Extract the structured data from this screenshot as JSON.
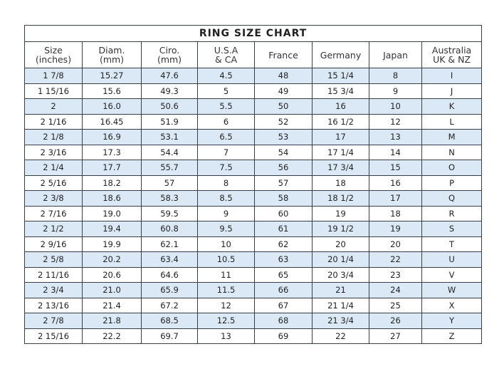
{
  "title": "RING SIZE CHART",
  "colors": {
    "stripe": "#dbe9f7",
    "border": "#3a3f45"
  },
  "headers": [
    [
      "Size",
      "(inches)"
    ],
    [
      "Diam.",
      "(mm)"
    ],
    [
      "Ciro.",
      "(mm)"
    ],
    [
      "U.S.A",
      "& CA"
    ],
    [
      "France",
      ""
    ],
    [
      "Germany",
      ""
    ],
    [
      "Japan",
      ""
    ],
    [
      "Australia",
      "UK & NZ"
    ]
  ],
  "rows": [
    [
      "1 7/8",
      "15.27",
      "47.6",
      "4.5",
      "48",
      "15 1/4",
      "8",
      "I"
    ],
    [
      "1 15/16",
      "15.6",
      "49.3",
      "5",
      "49",
      "15 3/4",
      "9",
      "J"
    ],
    [
      "2",
      "16.0",
      "50.6",
      "5.5",
      "50",
      "16",
      "10",
      "K"
    ],
    [
      "2 1/16",
      "16.45",
      "51.9",
      "6",
      "52",
      "16 1/2",
      "12",
      "L"
    ],
    [
      "2 1/8",
      "16.9",
      "53.1",
      "6.5",
      "53",
      "17",
      "13",
      "M"
    ],
    [
      "2 3/16",
      "17.3",
      "54.4",
      "7",
      "54",
      "17 1/4",
      "14",
      "N"
    ],
    [
      "2 1/4",
      "17.7",
      "55.7",
      "7.5",
      "56",
      "17 3/4",
      "15",
      "O"
    ],
    [
      "2 5/16",
      "18.2",
      "57",
      "8",
      "57",
      "18",
      "16",
      "P"
    ],
    [
      "2 3/8",
      "18.6",
      "58.3",
      "8.5",
      "58",
      "18 1/2",
      "17",
      "Q"
    ],
    [
      "2 7/16",
      "19.0",
      "59.5",
      "9",
      "60",
      "19",
      "18",
      "R"
    ],
    [
      "2 1/2",
      "19.4",
      "60.8",
      "9.5",
      "61",
      "19 1/2",
      "19",
      "S"
    ],
    [
      "2 9/16",
      "19.9",
      "62.1",
      "10",
      "62",
      "20",
      "20",
      "T"
    ],
    [
      "2 5/8",
      "20.2",
      "63.4",
      "10.5",
      "63",
      "20 1/4",
      "22",
      "U"
    ],
    [
      "2 11/16",
      "20.6",
      "64.6",
      "11",
      "65",
      "20 3/4",
      "23",
      "V"
    ],
    [
      "2 3/4",
      "21.0",
      "65.9",
      "11.5",
      "66",
      "21",
      "24",
      "W"
    ],
    [
      "2 13/16",
      "21.4",
      "67.2",
      "12",
      "67",
      "21 1/4",
      "25",
      "X"
    ],
    [
      "2 7/8",
      "21.8",
      "68.5",
      "12.5",
      "68",
      "21 3/4",
      "26",
      "Y"
    ],
    [
      "2 15/16",
      "22.2",
      "69.7",
      "13",
      "69",
      "22",
      "27",
      "Z"
    ]
  ]
}
